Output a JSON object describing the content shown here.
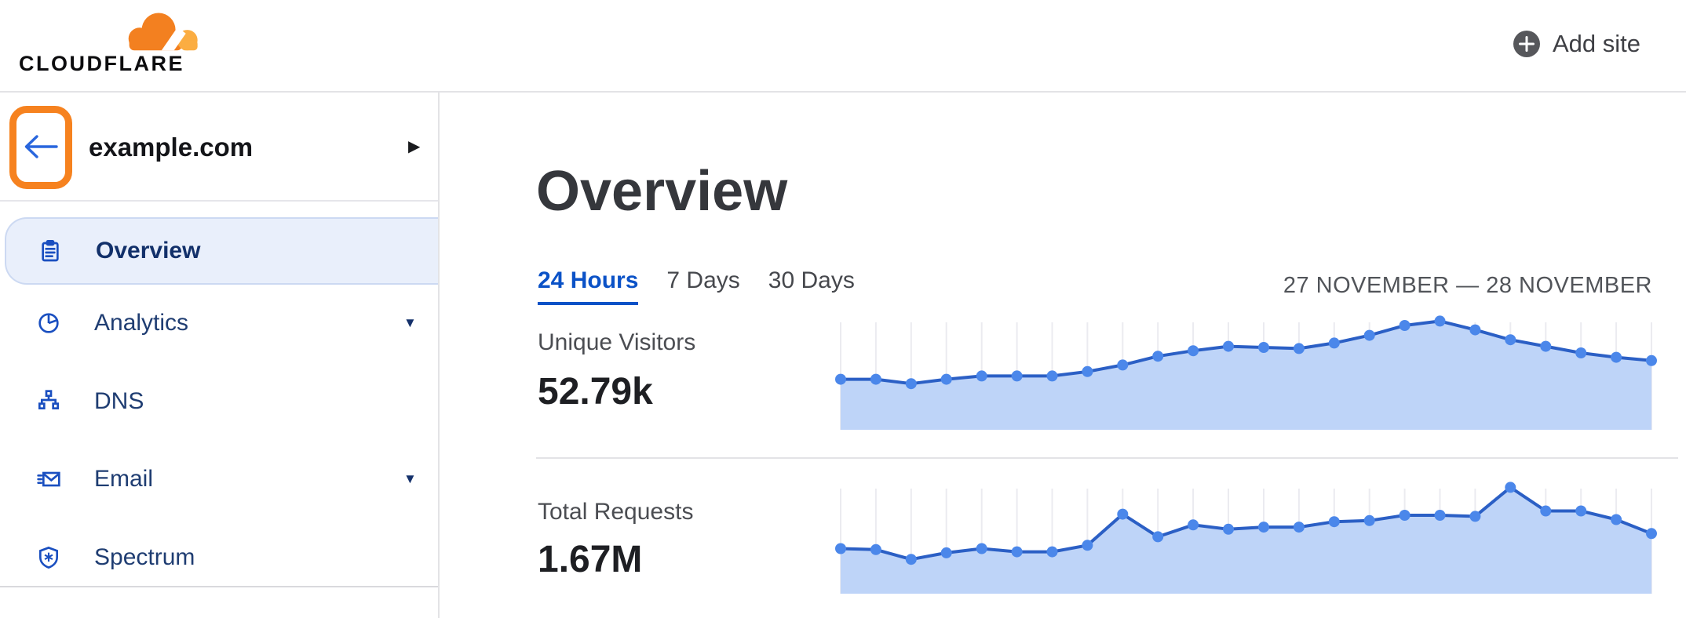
{
  "header": {
    "logo_text": "CLOUDFLARE",
    "add_site_label": "Add site"
  },
  "sidebar": {
    "site_name": "example.com",
    "items": [
      {
        "label": "Overview",
        "active": true,
        "has_dropdown": false
      },
      {
        "label": "Analytics",
        "active": false,
        "has_dropdown": true
      },
      {
        "label": "DNS",
        "active": false,
        "has_dropdown": false
      },
      {
        "label": "Email",
        "active": false,
        "has_dropdown": true
      },
      {
        "label": "Spectrum",
        "active": false,
        "has_dropdown": false
      }
    ]
  },
  "main": {
    "title": "Overview",
    "tabs": [
      {
        "label": "24 Hours",
        "active": true
      },
      {
        "label": "7 Days",
        "active": false
      },
      {
        "label": "30 Days",
        "active": false
      }
    ],
    "date_range": "27 NOVEMBER — 28 NOVEMBER",
    "metrics": [
      {
        "label": "Unique Visitors",
        "value": "52.79k"
      },
      {
        "label": "Total Requests",
        "value": "1.67M"
      }
    ]
  },
  "colors": {
    "brand_orange": "#f6821f",
    "logo_orange": "#f38020",
    "logo_orange_light": "#fbad41",
    "link_blue": "#0b52c7",
    "nav_text_blue": "#1f3d72",
    "nav_icon_blue": "#1a4fc0",
    "active_item_bg": "#e9effb",
    "chart_line": "#2b5fc5",
    "chart_dot": "#4b87ea",
    "chart_fill": "#bed4f8",
    "chart_grid": "#ebebf0"
  },
  "chart_data": [
    {
      "type": "area",
      "title": "Unique Visitors",
      "current_value": "52.79k",
      "time_window": "24 Hours, 27 November — 28 November",
      "x_description": "24 evenly spaced time points, unlabeled sparkline",
      "values_percent_of_peak": [
        46,
        46,
        42,
        46,
        49,
        49,
        49,
        53,
        59,
        67,
        72,
        76,
        75,
        74,
        79,
        86,
        95,
        99,
        91,
        82,
        76,
        70,
        66,
        63
      ],
      "ylim": [
        0,
        100
      ],
      "grid": "vertical-lines-at-each-point",
      "legend": "none",
      "markers": true
    },
    {
      "type": "area",
      "title": "Total Requests",
      "current_value": "1.67M",
      "time_window": "24 Hours, 27 November — 28 November",
      "x_description": "24 evenly spaced time points, unlabeled sparkline",
      "values_percent_of_peak": [
        42,
        41,
        32,
        38,
        42,
        39,
        39,
        45,
        74,
        53,
        64,
        60,
        62,
        62,
        67,
        68,
        73,
        73,
        72,
        99,
        77,
        77,
        69,
        56
      ],
      "ylim": [
        0,
        100
      ],
      "grid": "vertical-lines-at-each-point",
      "legend": "none",
      "markers": true
    }
  ]
}
